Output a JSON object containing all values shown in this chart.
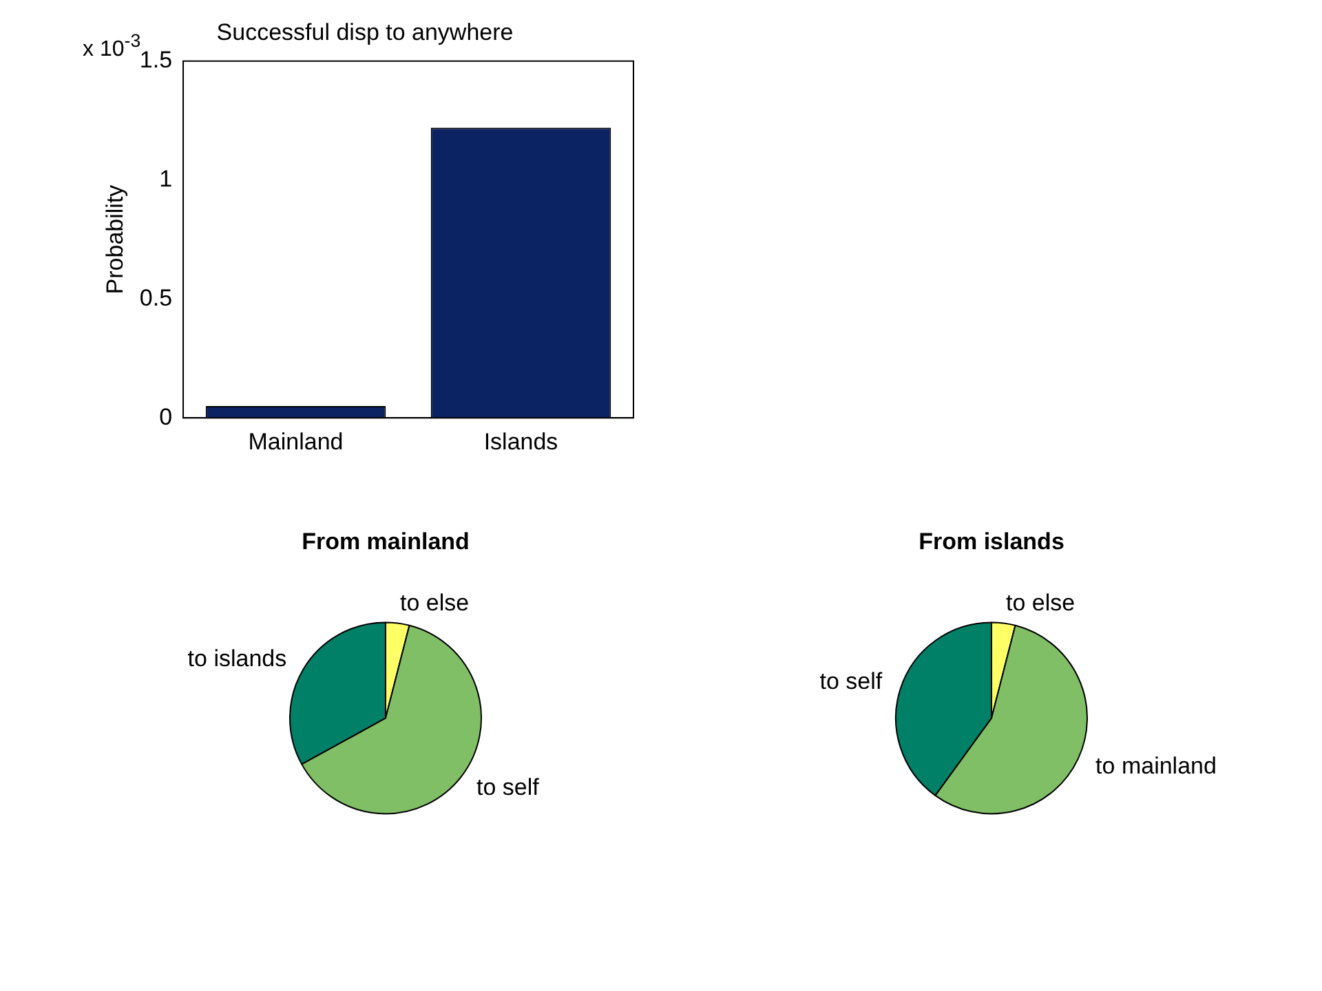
{
  "chart_data": [
    {
      "type": "bar",
      "title": "Successful disp to anywhere",
      "ylabel": "Probability",
      "annotations": [
        "x 10$^{-3}$"
      ],
      "categories": [
        "Mainland",
        "Islands"
      ],
      "values": [
        0.05,
        1.22
      ],
      "color": "#0c2363",
      "ylim": [
        0,
        1.5
      ],
      "yticks": [
        0,
        0.5,
        1,
        1.5
      ],
      "grid": false,
      "legend": false
    },
    {
      "type": "pie",
      "title": "From mainland",
      "categories": [
        "to else",
        "to self",
        "to islands"
      ],
      "values": [
        4,
        63,
        33
      ],
      "colors": [
        "#ffff66",
        "#80bf66",
        "#008066"
      ],
      "legend": false
    },
    {
      "type": "pie",
      "title": "From islands",
      "categories": [
        "to else",
        "to mainland",
        "to self"
      ],
      "values": [
        4,
        56,
        40
      ],
      "colors": [
        "#ffff66",
        "#80bf66",
        "#008066"
      ],
      "legend": false
    }
  ]
}
